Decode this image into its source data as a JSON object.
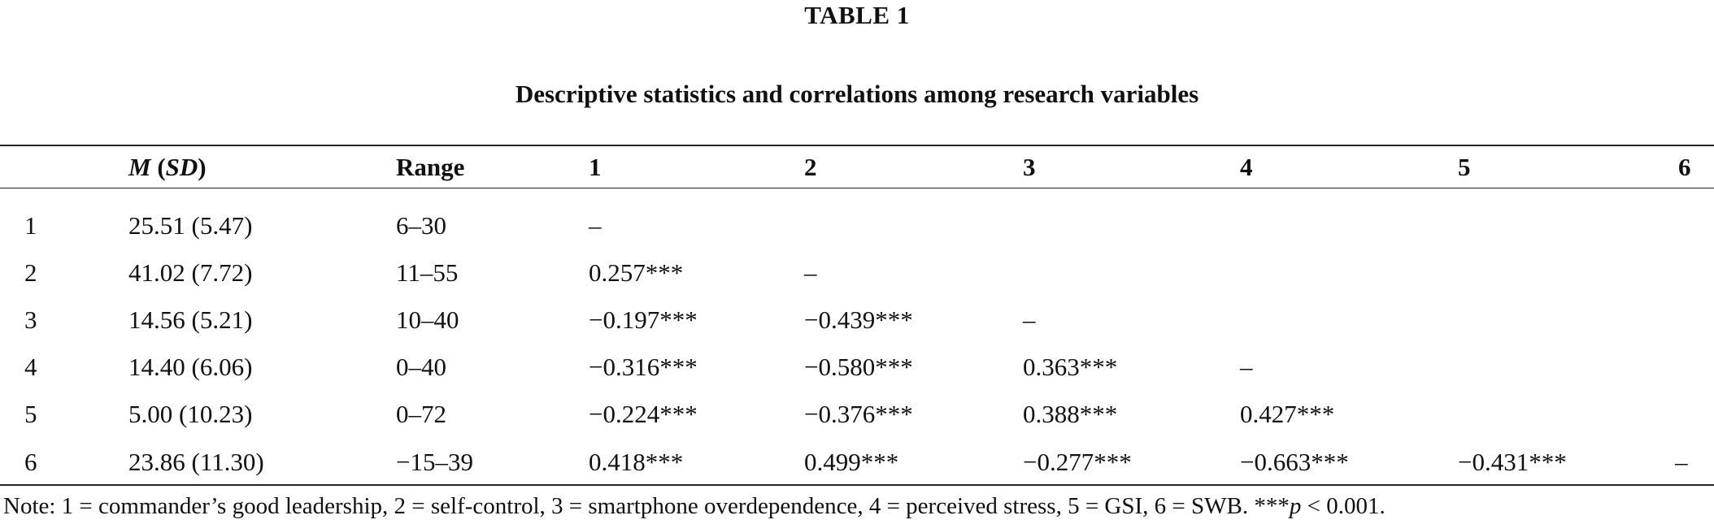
{
  "table_label": "TABLE 1",
  "caption": "Descriptive statistics and correlations among research variables",
  "header": {
    "blank": "",
    "mean_italic": "M",
    "sd_open": " (",
    "sd_italic": "SD",
    "sd_close": ")",
    "range": "Range",
    "c1": "1",
    "c2": "2",
    "c3": "3",
    "c4": "4",
    "c5": "5",
    "c6": "6"
  },
  "rows": [
    {
      "id": "1",
      "msd": "25.51 (5.47)",
      "range": "6–30",
      "c1": "–",
      "c2": "",
      "c3": "",
      "c4": "",
      "c5": "",
      "c6": ""
    },
    {
      "id": "2",
      "msd": "41.02 (7.72)",
      "range": "11–55",
      "c1": "0.257***",
      "c2": "–",
      "c3": "",
      "c4": "",
      "c5": "",
      "c6": ""
    },
    {
      "id": "3",
      "msd": "14.56 (5.21)",
      "range": "10–40",
      "c1": "−0.197***",
      "c2": "−0.439***",
      "c3": "–",
      "c4": "",
      "c5": "",
      "c6": ""
    },
    {
      "id": "4",
      "msd": "14.40 (6.06)",
      "range": "0–40",
      "c1": "−0.316***",
      "c2": "−0.580***",
      "c3": "0.363***",
      "c4": "–",
      "c5": "",
      "c6": ""
    },
    {
      "id": "5",
      "msd": "5.00 (10.23)",
      "range": "0–72",
      "c1": "−0.224***",
      "c2": "−0.376***",
      "c3": "0.388***",
      "c4": "0.427***",
      "c5": "",
      "c6": ""
    },
    {
      "id": "6",
      "msd": "23.86 (11.30)",
      "range": "−15–39",
      "c1": "0.418***",
      "c2": "0.499***",
      "c3": "−0.277***",
      "c4": "−0.663***",
      "c5": "−0.431***",
      "c6": "–"
    }
  ],
  "note": {
    "text": "Note: 1 = commander’s good leadership, 2 = self-control, 3 = smartphone overdependence, 4 = perceived stress, 5 = GSI, 6 = SWB. ***",
    "p_italic": "p",
    "p_rest": " < 0.001."
  }
}
